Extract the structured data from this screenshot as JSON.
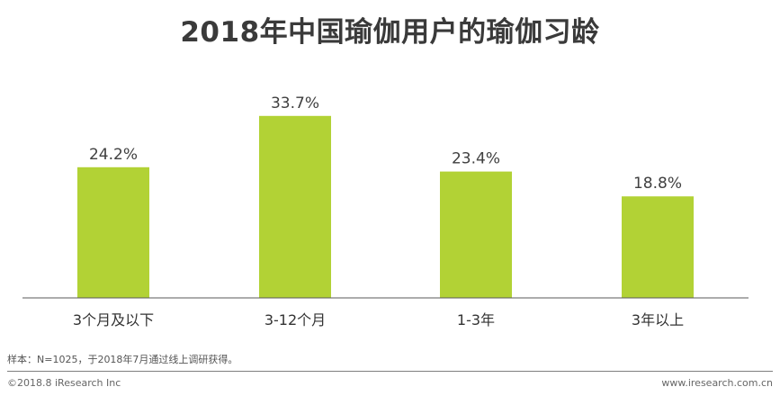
{
  "chart_data": {
    "type": "bar",
    "title": "2018年中国瑜伽用户的瑜伽习龄",
    "categories": [
      "3个月及以下",
      "3-12个月",
      "1-3年",
      "3年以上"
    ],
    "values": [
      24.2,
      33.7,
      23.4,
      18.8
    ],
    "value_labels": [
      "24.2%",
      "33.7%",
      "23.4%",
      "18.8%"
    ],
    "unit": "%",
    "ylim": [
      0,
      40
    ],
    "grid": false,
    "legend": "none",
    "bar_color": "#b2d235",
    "axis_color": "#595959"
  },
  "footnote": "样本：N=1025，于2018年7月通过线上调研获得。",
  "copyright": "©2018.8 iResearch Inc",
  "website": "www.iresearch.com.cn"
}
